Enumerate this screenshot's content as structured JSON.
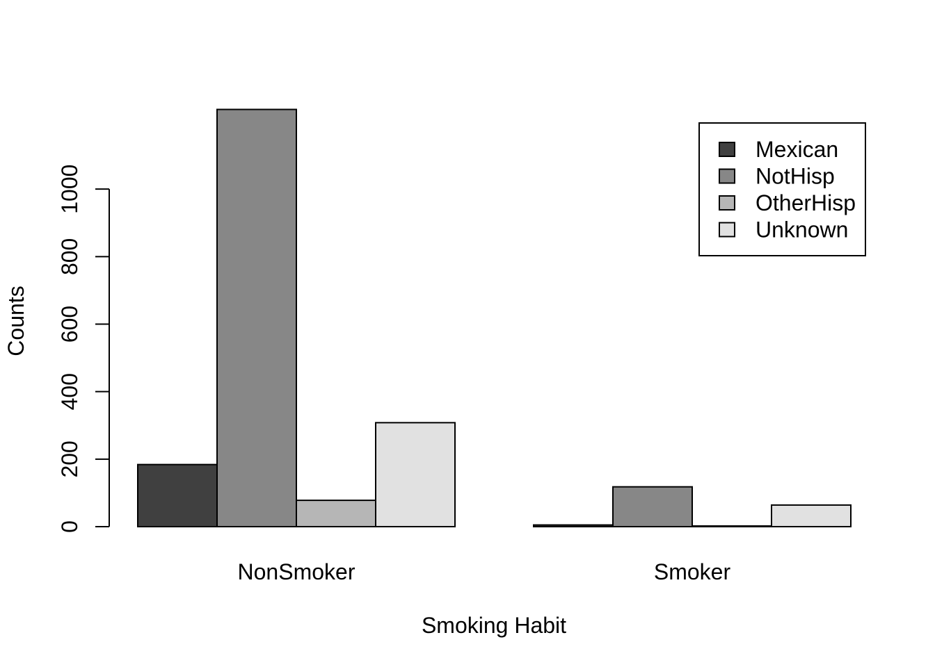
{
  "chart_data": {
    "type": "bar",
    "categories": [
      "NonSmoker",
      "Smoker"
    ],
    "series": [
      {
        "name": "Mexican",
        "values": [
          184,
          5
        ],
        "color": "#404040"
      },
      {
        "name": "NotHisp",
        "values": [
          1236,
          118
        ],
        "color": "#878787"
      },
      {
        "name": "OtherHisp",
        "values": [
          78,
          2
        ],
        "color": "#b6b6b6"
      },
      {
        "name": "Unknown",
        "values": [
          308,
          64
        ],
        "color": "#e1e1e1"
      }
    ],
    "xlabel": "Smoking Habit",
    "ylabel": "Counts",
    "yticks": [
      "0",
      "200",
      "400",
      "600",
      "800",
      "1000"
    ],
    "ylim": [
      0,
      1200
    ],
    "grid": false,
    "legend_position": "top-right"
  }
}
